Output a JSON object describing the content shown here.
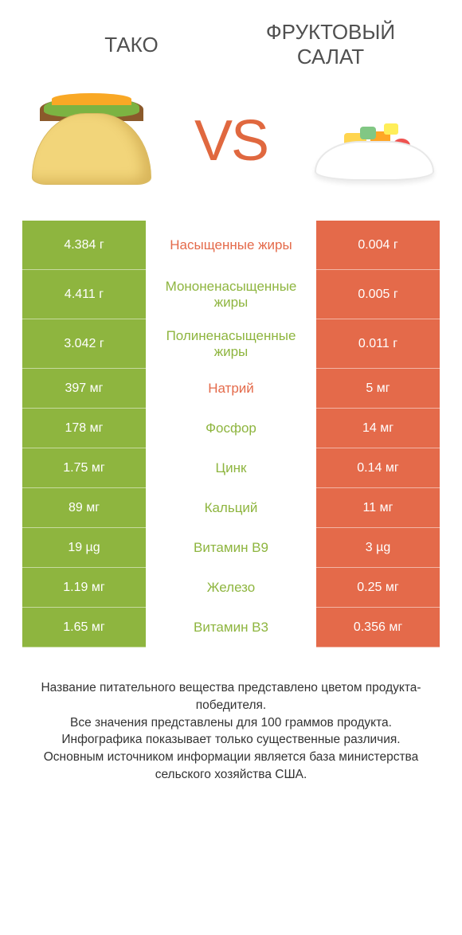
{
  "header": {
    "left_title": "ТАКО",
    "right_title": "ФРУКТОВЫЙ САЛАТ",
    "vs_label": "VS"
  },
  "colors": {
    "left_bar": "#8eb53f",
    "right_bar": "#e46a4a",
    "vs_text": "#e0683f",
    "background": "#ffffff",
    "title_text": "#505050"
  },
  "fonts": {
    "title_size": 26,
    "vs_size": 72,
    "cell_size": 16,
    "label_size": 17,
    "footnote_size": 15.5
  },
  "rows": [
    {
      "left": "4.384 г",
      "label": "Насыщенные жиры",
      "right": "0.004 г",
      "label_color": "orange",
      "tall": true
    },
    {
      "left": "4.411 г",
      "label": "Мононенасыщенные жиры",
      "right": "0.005 г",
      "label_color": "green",
      "tall": true
    },
    {
      "left": "3.042 г",
      "label": "Полиненасыщенные жиры",
      "right": "0.011 г",
      "label_color": "green",
      "tall": true
    },
    {
      "left": "397 мг",
      "label": "Натрий",
      "right": "5 мг",
      "label_color": "orange",
      "tall": false
    },
    {
      "left": "178 мг",
      "label": "Фосфор",
      "right": "14 мг",
      "label_color": "green",
      "tall": false
    },
    {
      "left": "1.75 мг",
      "label": "Цинк",
      "right": "0.14 мг",
      "label_color": "green",
      "tall": false
    },
    {
      "left": "89 мг",
      "label": "Кальций",
      "right": "11 мг",
      "label_color": "green",
      "tall": false
    },
    {
      "left": "19 µg",
      "label": "Витамин B9",
      "right": "3 µg",
      "label_color": "green",
      "tall": false
    },
    {
      "left": "1.19 мг",
      "label": "Железо",
      "right": "0.25 мг",
      "label_color": "green",
      "tall": false
    },
    {
      "left": "1.65 мг",
      "label": "Витамин B3",
      "right": "0.356 мг",
      "label_color": "green",
      "tall": false
    }
  ],
  "footnote": {
    "line1": "Название питательного вещества представлено цветом продукта-победителя.",
    "line2": "Все значения представлены для 100 граммов продукта.",
    "line3": "Инфографика показывает только существенные различия.",
    "line4": "Основным источником информации является база министерства сельского хозяйства США."
  }
}
